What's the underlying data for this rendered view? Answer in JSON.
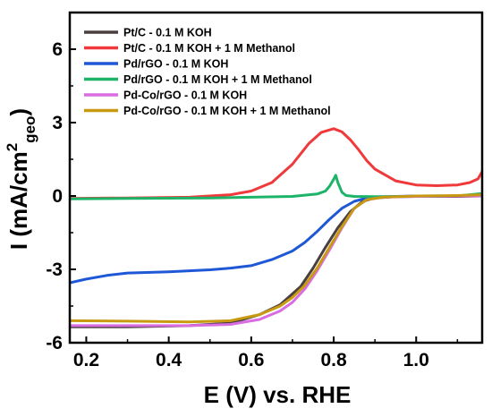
{
  "chart_data": {
    "type": "line",
    "xlabel": "E (V) vs. RHE",
    "ylabel": "I (mA/cm",
    "ylabel_sup": "2",
    "ylabel_sub": "geo",
    "ylabel_close": ")",
    "xlim": [
      0.16,
      1.16
    ],
    "ylim": [
      -6,
      7.5
    ],
    "xticks": [
      0.2,
      0.4,
      0.6,
      0.8,
      1.0
    ],
    "xtick_labels": [
      "0.2",
      "0.4",
      "0.6",
      "0.8",
      "1.0"
    ],
    "yticks": [
      -6,
      -3,
      0,
      3,
      6
    ],
    "ytick_labels": [
      "-6",
      "-3",
      "0",
      "3",
      "6"
    ],
    "grid": false,
    "legend_position": "top-left",
    "series": [
      {
        "name": "Pt/C - 0.1 M KOH",
        "color": "#4a3f3f",
        "x": [
          0.16,
          0.3,
          0.45,
          0.55,
          0.62,
          0.67,
          0.72,
          0.75,
          0.78,
          0.81,
          0.84,
          0.87,
          0.9,
          0.95,
          1.0,
          1.1,
          1.16
        ],
        "y": [
          -5.35,
          -5.35,
          -5.3,
          -5.2,
          -4.85,
          -4.45,
          -3.7,
          -2.95,
          -2.1,
          -1.3,
          -0.65,
          -0.22,
          -0.08,
          -0.03,
          -0.02,
          -0.02,
          0.0
        ]
      },
      {
        "name": "Pt/C  - 0.1 M KOH + 1 M Methanol",
        "color": "#f0393b",
        "x": [
          0.16,
          0.3,
          0.45,
          0.55,
          0.6,
          0.65,
          0.7,
          0.74,
          0.77,
          0.8,
          0.82,
          0.84,
          0.86,
          0.88,
          0.9,
          0.95,
          1.0,
          1.05,
          1.1,
          1.13,
          1.15,
          1.16
        ],
        "y": [
          -0.1,
          -0.08,
          -0.05,
          0.05,
          0.2,
          0.55,
          1.3,
          2.15,
          2.6,
          2.75,
          2.62,
          2.3,
          1.9,
          1.45,
          1.1,
          0.62,
          0.45,
          0.42,
          0.45,
          0.55,
          0.7,
          1.0
        ]
      },
      {
        "name": "Pd/rGO - 0.1 M KOH",
        "color": "#1f58d6",
        "x": [
          0.16,
          0.2,
          0.25,
          0.3,
          0.4,
          0.5,
          0.55,
          0.6,
          0.65,
          0.7,
          0.73,
          0.76,
          0.79,
          0.82,
          0.85,
          0.88,
          0.9,
          0.95,
          1.0,
          1.1,
          1.16
        ],
        "y": [
          -3.55,
          -3.4,
          -3.25,
          -3.15,
          -3.1,
          -3.02,
          -2.95,
          -2.85,
          -2.6,
          -2.25,
          -1.9,
          -1.45,
          -0.95,
          -0.5,
          -0.22,
          -0.08,
          -0.04,
          -0.02,
          0.0,
          0.0,
          0.02
        ]
      },
      {
        "name": "Pd/rGO  - 0.1 M KOH + 1 M Methanol",
        "color": "#1db469",
        "x": [
          0.16,
          0.3,
          0.5,
          0.7,
          0.76,
          0.78,
          0.79,
          0.8,
          0.805,
          0.81,
          0.82,
          0.83,
          0.85,
          0.9,
          1.0,
          1.1,
          1.16
        ],
        "y": [
          -0.12,
          -0.1,
          -0.08,
          -0.02,
          0.08,
          0.2,
          0.4,
          0.68,
          0.85,
          0.55,
          0.15,
          0.02,
          -0.02,
          -0.03,
          -0.02,
          0.0,
          0.1
        ]
      },
      {
        "name": "Pd-Co/rGO - 0.1 M KOH",
        "color": "#d96ce0",
        "x": [
          0.16,
          0.3,
          0.45,
          0.55,
          0.62,
          0.67,
          0.7,
          0.73,
          0.76,
          0.79,
          0.82,
          0.85,
          0.88,
          0.92,
          1.0,
          1.1,
          1.16
        ],
        "y": [
          -5.3,
          -5.3,
          -5.3,
          -5.25,
          -5.05,
          -4.7,
          -4.35,
          -3.8,
          -3.05,
          -2.2,
          -1.3,
          -0.5,
          -0.15,
          -0.05,
          -0.02,
          0.0,
          0.0
        ]
      },
      {
        "name": "Pd-Co/rGO  - 0.1 M KOH + 1 M Methanol",
        "color": "#c79a12",
        "x": [
          0.16,
          0.3,
          0.45,
          0.55,
          0.62,
          0.67,
          0.7,
          0.73,
          0.76,
          0.79,
          0.82,
          0.85,
          0.88,
          0.92,
          1.0,
          1.1,
          1.16
        ],
        "y": [
          -5.1,
          -5.12,
          -5.15,
          -5.1,
          -4.85,
          -4.5,
          -4.15,
          -3.65,
          -2.95,
          -2.1,
          -1.25,
          -0.5,
          -0.15,
          -0.05,
          0.0,
          0.02,
          0.05
        ]
      }
    ]
  }
}
